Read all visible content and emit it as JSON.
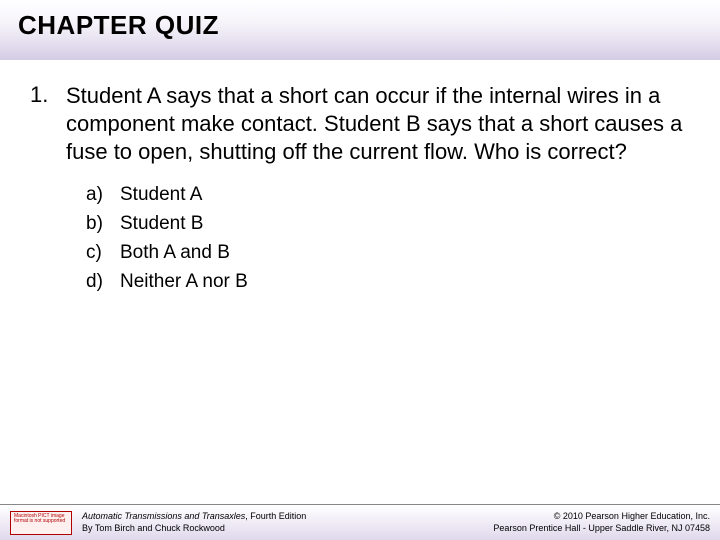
{
  "header": {
    "title": "CHAPTER QUIZ"
  },
  "question": {
    "number": "1.",
    "text": "Student A says that a short can occur if the internal wires in a component make contact. Student B says that a short causes a fuse to open, shutting off the current flow. Who is correct?"
  },
  "options": [
    {
      "letter": "a)",
      "text": "Student A"
    },
    {
      "letter": "b)",
      "text": "Student B"
    },
    {
      "letter": "c)",
      "text": "Both A and B"
    },
    {
      "letter": "d)",
      "text": "Neither A nor B"
    }
  ],
  "footer": {
    "badge_text": "Macintosh PICT image format is not supported",
    "book_title": "Automatic Transmissions and Transaxles",
    "edition": ", Fourth Edition",
    "authors": "By Tom Birch and Chuck Rockwood",
    "copyright": "© 2010 Pearson Higher Education, Inc.",
    "publisher": "Pearson Prentice Hall - Upper Saddle River, NJ 07458"
  },
  "colors": {
    "text": "#000000",
    "header_grad_top": "#ffffff",
    "header_grad_bottom": "#d5cce5",
    "footer_border": "#888888",
    "badge_border": "#b00000",
    "badge_bg": "#fff0f0"
  },
  "fonts": {
    "title_size_pt": 20,
    "question_size_pt": 17,
    "option_size_pt": 14,
    "footer_size_pt": 7
  }
}
